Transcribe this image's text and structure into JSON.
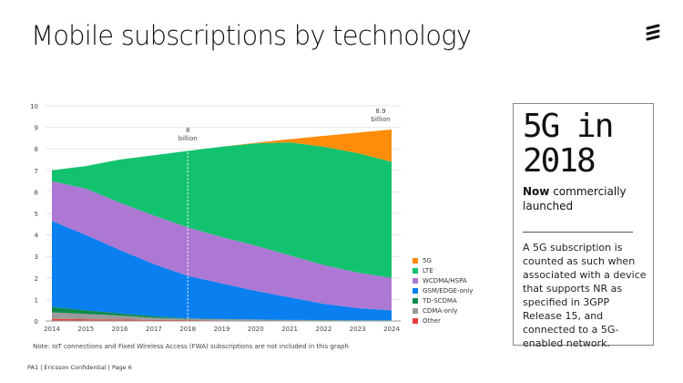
{
  "title": "Mobile subscriptions by technology",
  "logo": "ericsson-logo",
  "note": "Note: IoT connections and Fixed Wireless Access (FWA) subscriptions are not included in this graph",
  "footer": "PA1 | Ericsson Confidential | Page 6",
  "callout": {
    "headline_line1": "5G in",
    "headline_line2": "2018",
    "sub_prefix": "Now",
    "sub_bold": "commercially launched",
    "description": "A 5G subscription is counted as such when associated with a device that supports NR as specified in 3GPP Release 15, and connected to a 5G-enabled network."
  },
  "chart_data": {
    "type": "area",
    "stacked": true,
    "x": [
      2014,
      2015,
      2016,
      2017,
      2018,
      2019,
      2020,
      2021,
      2022,
      2023,
      2024
    ],
    "ylim": [
      0,
      10
    ],
    "yticks": [
      "0",
      "1",
      "2",
      "3",
      "4",
      "5",
      "6",
      "7",
      "8",
      "9",
      "10"
    ],
    "grid": true,
    "legend_placement": "right",
    "series": [
      {
        "name": "Other",
        "color": "#e8403c",
        "values": [
          0.1,
          0.08,
          0.07,
          0.05,
          0.04,
          0.03,
          0.02,
          0.02,
          0.01,
          0.01,
          0.01
        ]
      },
      {
        "name": "CDMA-only",
        "color": "#9a9a9a",
        "values": [
          0.3,
          0.25,
          0.18,
          0.1,
          0.06,
          0.05,
          0.04,
          0.02,
          0.02,
          0.01,
          0.01
        ]
      },
      {
        "name": "TD-SCDMA",
        "color": "#0f8a4c",
        "values": [
          0.25,
          0.17,
          0.1,
          0.07,
          0.02,
          0.01,
          0.01,
          0.01,
          0.01,
          0.01,
          0.01
        ]
      },
      {
        "name": "GSM/EDGE-only",
        "color": "#0a7ff0",
        "values": [
          4.0,
          3.5,
          2.95,
          2.43,
          1.98,
          1.66,
          1.33,
          1.05,
          0.76,
          0.57,
          0.47
        ]
      },
      {
        "name": "WCDMA/HSPA",
        "color": "#ad78d3",
        "values": [
          1.85,
          2.15,
          2.2,
          2.25,
          2.25,
          2.15,
          2.1,
          1.95,
          1.8,
          1.65,
          1.5
        ]
      },
      {
        "name": "LTE",
        "color": "#13c26f",
        "values": [
          0.5,
          1.05,
          2.0,
          2.8,
          3.55,
          4.2,
          4.75,
          5.25,
          5.5,
          5.55,
          5.4
        ]
      },
      {
        "name": "5G",
        "color": "#ff8c0a",
        "values": [
          0,
          0,
          0,
          0,
          0,
          0,
          0.03,
          0.15,
          0.5,
          0.95,
          1.5
        ]
      }
    ],
    "annotations": [
      {
        "x": 2018,
        "y": 8,
        "line1": "8",
        "line2": "billion",
        "dashed_line": true
      },
      {
        "x": 2024,
        "y": 8.9,
        "line1": "8.9",
        "line2": "billion"
      }
    ]
  }
}
